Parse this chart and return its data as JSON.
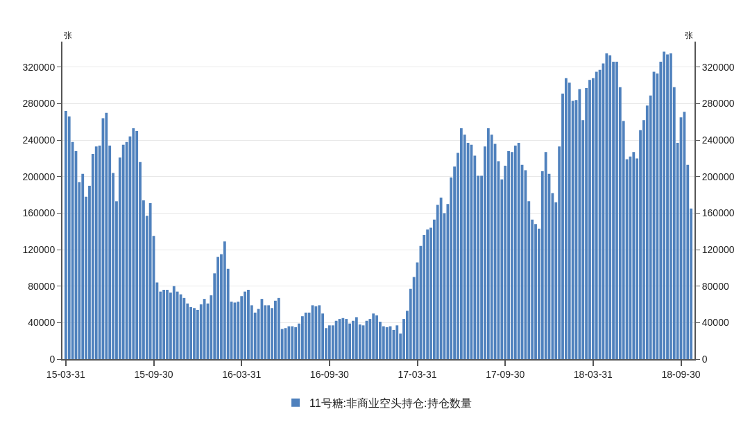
{
  "chart_data": {
    "type": "bar",
    "ylabel": "张",
    "y2label": "张",
    "categories": [
      "15-03-31",
      null,
      null,
      null,
      null,
      null,
      null,
      null,
      null,
      null,
      null,
      null,
      null,
      null,
      null,
      null,
      null,
      null,
      null,
      null,
      null,
      null,
      null,
      null,
      null,
      null,
      "15-09-30",
      null,
      null,
      null,
      null,
      null,
      null,
      null,
      null,
      null,
      null,
      null,
      null,
      null,
      null,
      null,
      null,
      null,
      null,
      null,
      null,
      null,
      null,
      null,
      null,
      null,
      "16-03-31",
      null,
      null,
      null,
      null,
      null,
      null,
      null,
      null,
      null,
      null,
      null,
      null,
      null,
      null,
      null,
      null,
      null,
      null,
      null,
      null,
      null,
      null,
      null,
      null,
      null,
      "16-09-30",
      null,
      null,
      null,
      null,
      null,
      null,
      null,
      null,
      null,
      null,
      null,
      null,
      null,
      null,
      null,
      null,
      null,
      null,
      null,
      null,
      null,
      null,
      null,
      null,
      null,
      "17-03-31",
      null,
      null,
      null,
      null,
      null,
      null,
      null,
      null,
      null,
      null,
      null,
      null,
      null,
      null,
      null,
      null,
      null,
      null,
      null,
      null,
      null,
      null,
      null,
      null,
      null,
      "17-09-30",
      null,
      null,
      null,
      null,
      null,
      null,
      null,
      null,
      null,
      null,
      null,
      null,
      null,
      null,
      null,
      null,
      null,
      null,
      null,
      null,
      null,
      null,
      null,
      null,
      null,
      "18-03-31",
      null,
      null,
      null,
      null,
      null,
      null,
      null,
      null,
      null,
      null,
      null,
      null,
      null,
      null,
      null,
      null,
      null,
      null,
      null,
      null,
      null,
      null,
      null,
      null,
      null,
      "18-09-30",
      null,
      null,
      null
    ],
    "series": [
      {
        "name": "11号糖:非商业空头持仓:持仓数量",
        "color": "#4f81bd",
        "values": [
          272000,
          266000,
          238000,
          228000,
          194000,
          203000,
          178000,
          190000,
          225000,
          233000,
          234000,
          264000,
          270000,
          234000,
          204000,
          173000,
          221000,
          235000,
          238000,
          244000,
          253000,
          250000,
          216000,
          174000,
          157000,
          171000,
          135000,
          84000,
          74000,
          76000,
          76000,
          73000,
          80000,
          74000,
          71000,
          67000,
          61000,
          57000,
          56000,
          54000,
          60000,
          66000,
          61000,
          70000,
          94000,
          112000,
          115000,
          129000,
          99000,
          63000,
          62000,
          63000,
          69000,
          74000,
          76000,
          59000,
          51000,
          55000,
          66000,
          59000,
          59000,
          56000,
          64000,
          67000,
          33000,
          34000,
          36000,
          36000,
          35000,
          39000,
          47000,
          51000,
          51000,
          59000,
          58000,
          59000,
          50000,
          34000,
          37000,
          37000,
          42000,
          44000,
          45000,
          44000,
          39000,
          42000,
          46000,
          38000,
          37000,
          42000,
          44000,
          50000,
          48000,
          41000,
          36000,
          35000,
          36000,
          32000,
          37000,
          28000,
          44000,
          53000,
          77000,
          90000,
          106000,
          124000,
          136000,
          142000,
          144000,
          153000,
          169000,
          177000,
          160000,
          170000,
          199000,
          211000,
          226000,
          253000,
          246000,
          237000,
          235000,
          223000,
          201000,
          201000,
          233000,
          253000,
          246000,
          236000,
          217000,
          197000,
          212000,
          228000,
          227000,
          234000,
          237000,
          213000,
          207000,
          173000,
          153000,
          148000,
          143000,
          206000,
          227000,
          203000,
          182000,
          172000,
          233000,
          291000,
          308000,
          303000,
          283000,
          284000,
          296000,
          262000,
          297000,
          306000,
          308000,
          315000,
          317000,
          324000,
          335000,
          333000,
          326000,
          326000,
          298000,
          261000,
          219000,
          222000,
          227000,
          220000,
          251000,
          262000,
          278000,
          289000,
          315000,
          313000,
          326000,
          337000,
          334000,
          335000,
          298000,
          237000,
          265000,
          271000,
          213000,
          165000
        ]
      }
    ],
    "ylim": [
      0,
      348000
    ],
    "yticks": [
      0,
      40000,
      80000,
      120000,
      160000,
      200000,
      240000,
      280000,
      320000
    ],
    "y2lim": [
      0,
      348000
    ],
    "y2ticks": [
      0,
      40000,
      80000,
      120000,
      160000,
      200000,
      240000,
      280000,
      320000
    ],
    "grid": "y",
    "legend": "bottom"
  }
}
